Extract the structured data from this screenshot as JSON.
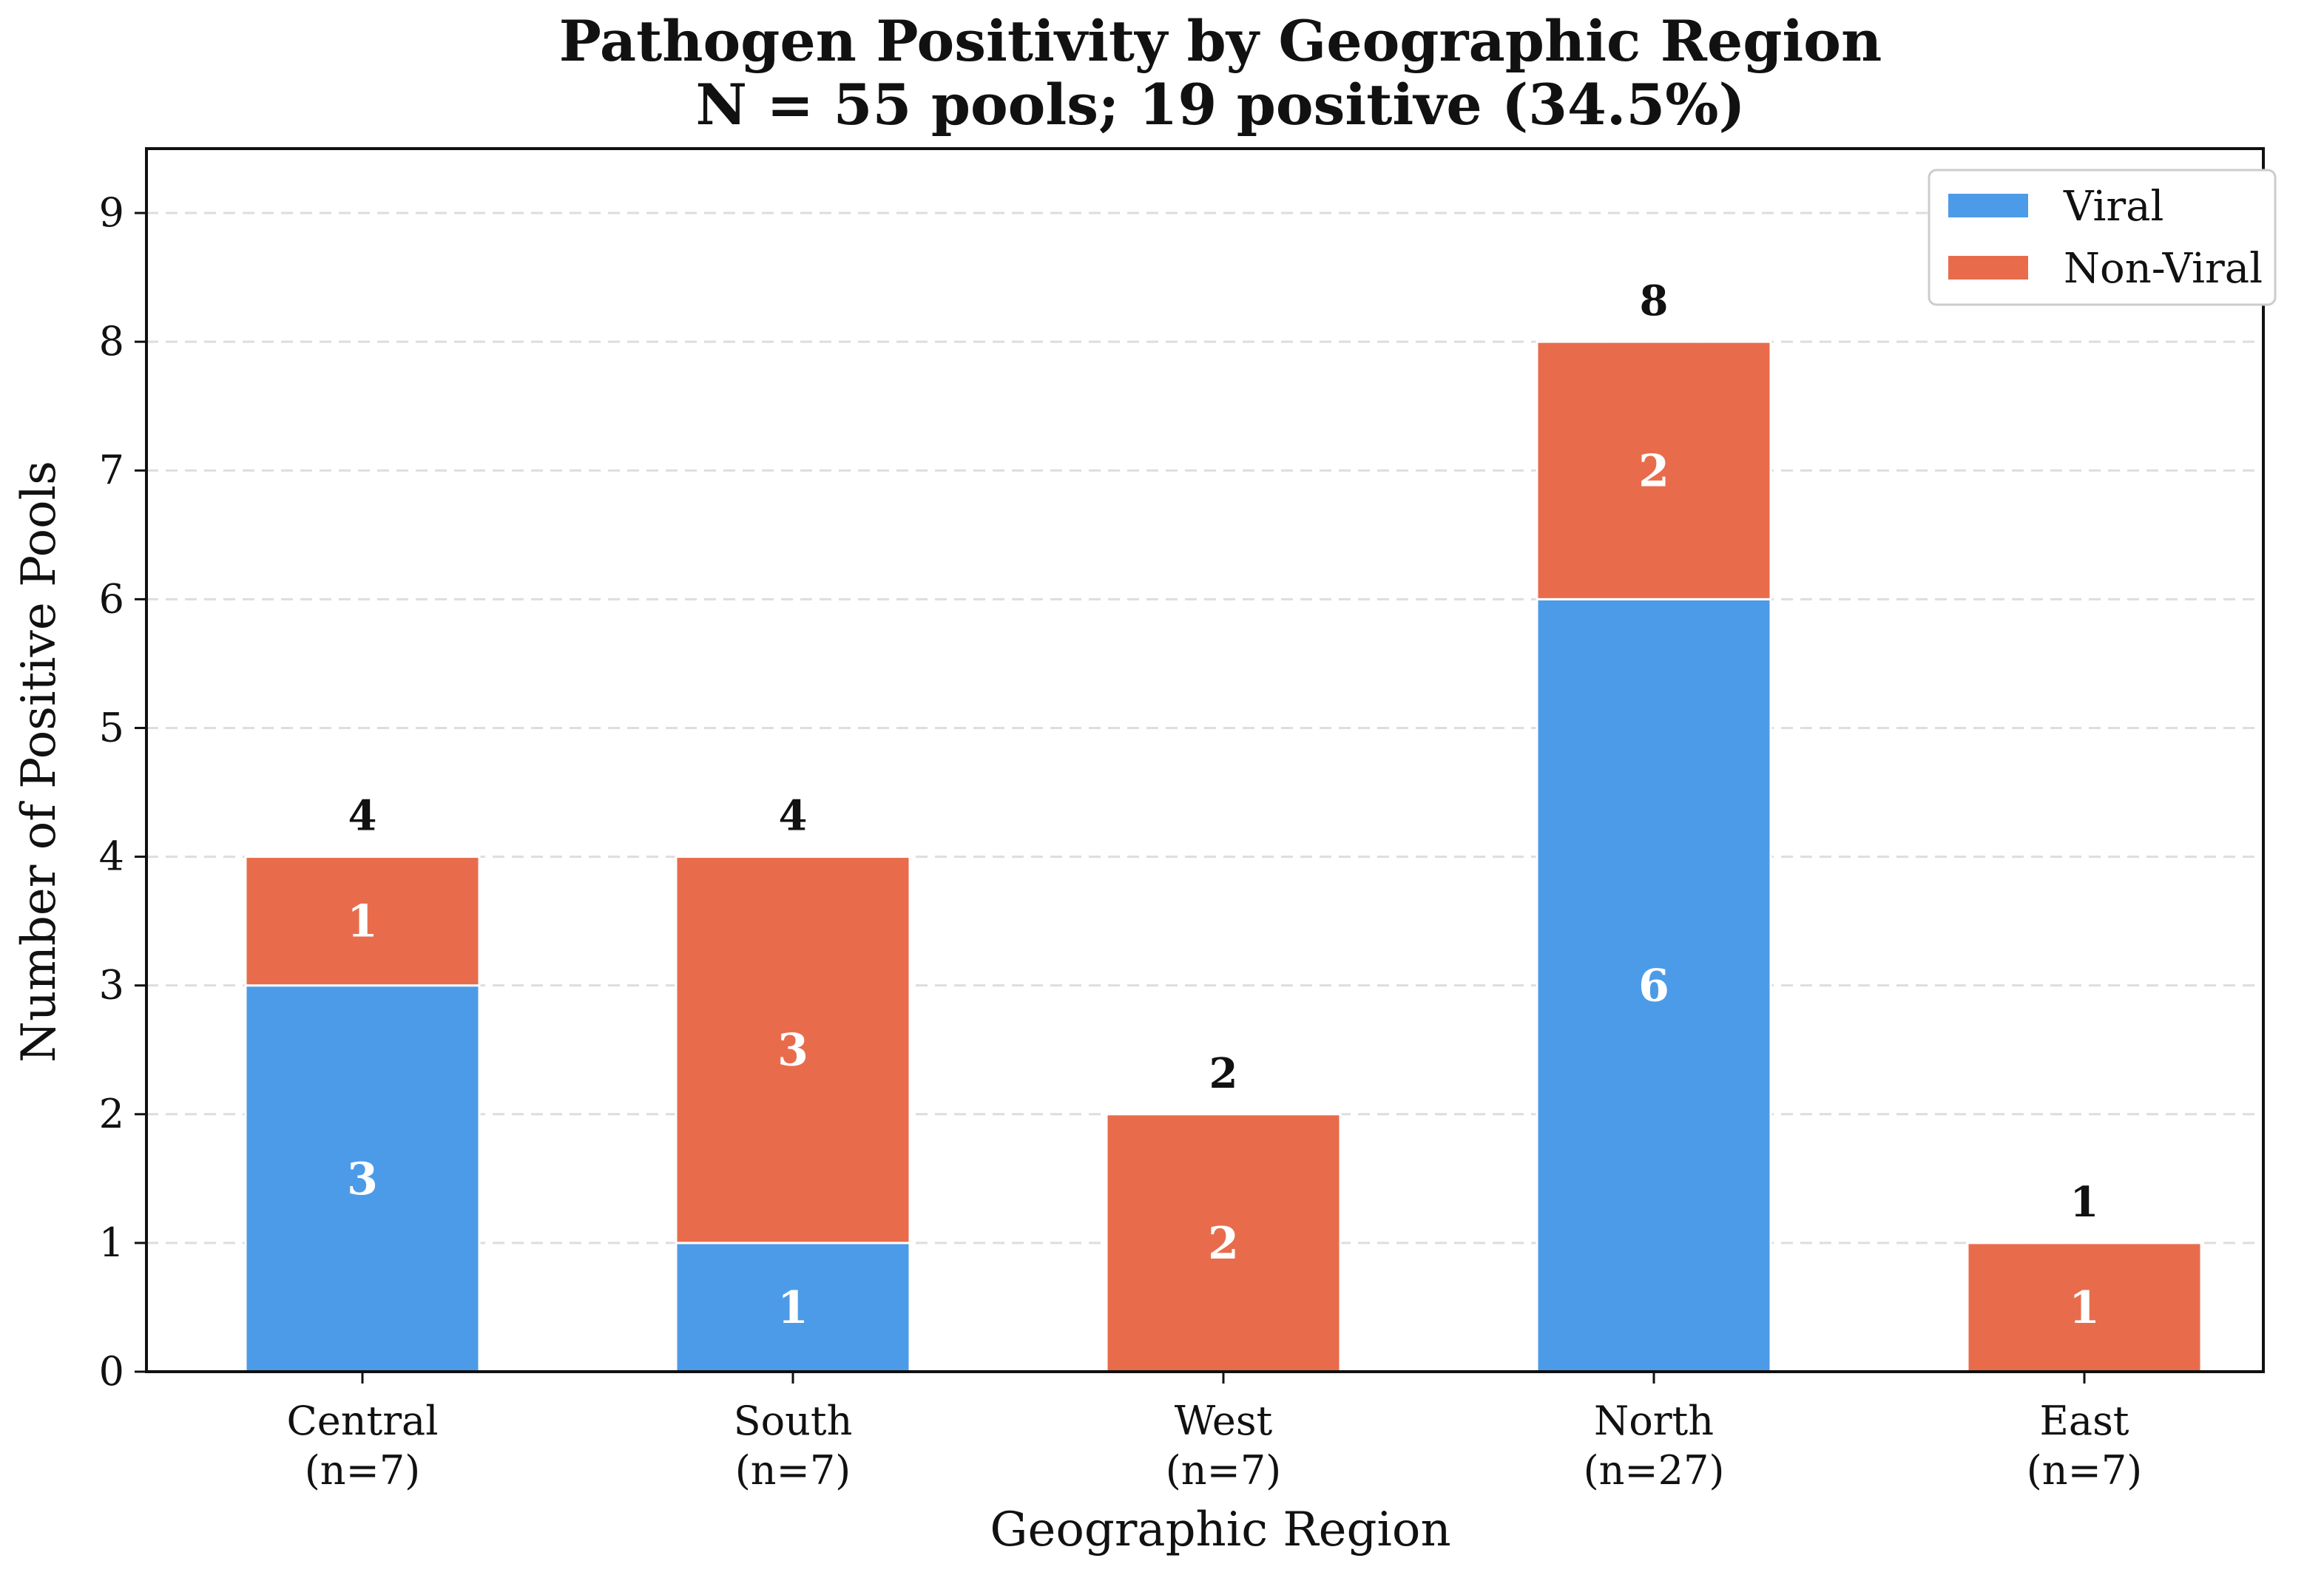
{
  "chart_data": {
    "type": "bar",
    "stacked": true,
    "title": "Pathogen Positivity by Geographic Region",
    "subtitle": "N = 55 pools; 19 positive (34.5%)",
    "xlabel": "Geographic Region",
    "ylabel": "Number of Positive Pools",
    "ylim": [
      0,
      9.5
    ],
    "yticks": [
      "0",
      "1",
      "2",
      "3",
      "4",
      "5",
      "6",
      "7",
      "8",
      "9"
    ],
    "grid": true,
    "legend_position": "top-right",
    "categories": [
      "Central",
      "South",
      "West",
      "North",
      "East"
    ],
    "category_counts": [
      "(n=7)",
      "(n=7)",
      "(n=7)",
      "(n=27)",
      "(n=7)"
    ],
    "series": [
      {
        "name": "Viral",
        "color": "#4C9BE8",
        "values": [
          3,
          1,
          0,
          6,
          0
        ]
      },
      {
        "name": "Non-Viral",
        "color": "#E86C4C",
        "values": [
          1,
          3,
          2,
          2,
          1
        ]
      }
    ],
    "totals": [
      4,
      4,
      2,
      8,
      1
    ]
  }
}
